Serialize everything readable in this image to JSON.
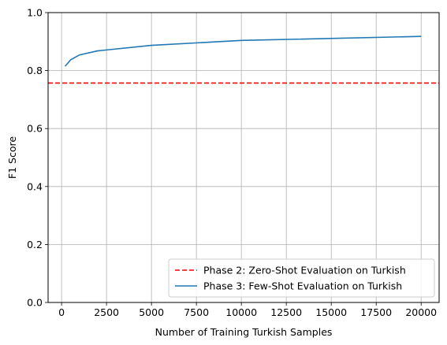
{
  "chart_data": {
    "type": "line",
    "xlabel": "Number of Training Turkish Samples",
    "ylabel": "F1 Score",
    "xlim": [
      -750,
      21000
    ],
    "ylim": [
      0.0,
      1.0
    ],
    "xticks": [
      0,
      2500,
      5000,
      7500,
      10000,
      12500,
      15000,
      17500,
      20000
    ],
    "xtick_labels": [
      "0",
      "2500",
      "5000",
      "7500",
      "10000",
      "12500",
      "15000",
      "17500",
      "20000"
    ],
    "yticks": [
      0.0,
      0.2,
      0.4,
      0.6,
      0.8,
      1.0
    ],
    "ytick_labels": [
      "0.0",
      "0.2",
      "0.4",
      "0.6",
      "0.8",
      "1.0"
    ],
    "grid": true,
    "legend_position": "lower-right",
    "baseline": {
      "name": "Phase 2: Zero-Shot Evaluation on Turkish",
      "value": 0.757,
      "style": "dashed",
      "color": "#ff0000"
    },
    "series": [
      {
        "name": "Phase 3: Few-Shot Evaluation on Turkish",
        "color": "#1f77b4",
        "x": [
          200,
          500,
          1000,
          2000,
          5000,
          10000,
          20000
        ],
        "y": [
          0.815,
          0.837,
          0.854,
          0.868,
          0.887,
          0.904,
          0.918
        ]
      }
    ]
  }
}
